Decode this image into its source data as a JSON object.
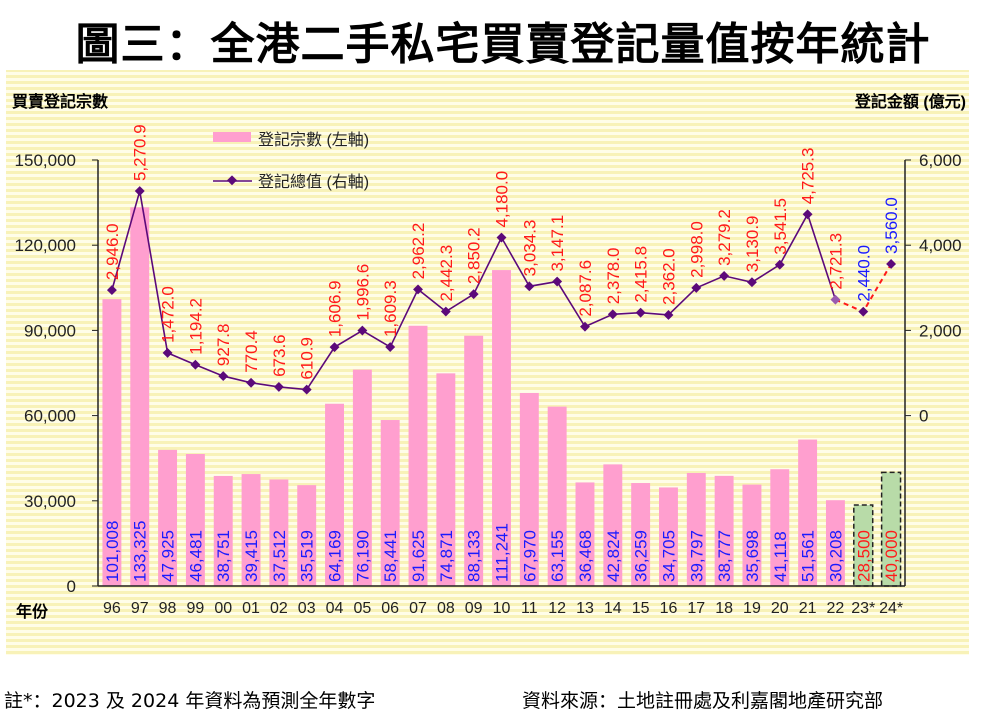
{
  "title": "圖三：全港二手私宅買賣登記量值按年統計",
  "chart_data": {
    "type": "bar+line",
    "title": "圖三：全港二手私宅買賣登記量值按年統計",
    "ylabel": "買賣登記宗數",
    "y2label": "登記金額 (億元)",
    "xlabel": "年份",
    "categories": [
      "96",
      "97",
      "98",
      "99",
      "00",
      "01",
      "02",
      "03",
      "04",
      "05",
      "06",
      "07",
      "08",
      "09",
      "10",
      "11",
      "12",
      "13",
      "14",
      "15",
      "16",
      "17",
      "18",
      "19",
      "20",
      "21",
      "22",
      "23*",
      "24*"
    ],
    "ylim": [
      0,
      150000
    ],
    "yticks": [
      "0",
      "30,000",
      "60,000",
      "90,000",
      "120,000",
      "150,000"
    ],
    "y2lim": [
      -4000,
      6000
    ],
    "y2ticks": [
      "0",
      "2,000",
      "4,000",
      "6,000"
    ],
    "grid": false,
    "legend_position": "top-left",
    "series": [
      {
        "name": "登記宗數 (左軸)",
        "type": "bar",
        "axis": "left",
        "color": "#ff9fcf",
        "values": [
          101008,
          133325,
          47925,
          46481,
          38751,
          39415,
          37512,
          35519,
          64169,
          76190,
          58441,
          91625,
          74871,
          88133,
          111241,
          67970,
          63155,
          36468,
          42824,
          36259,
          34705,
          39797,
          38777,
          35698,
          41118,
          51561,
          30208,
          28500,
          40000
        ],
        "labels": [
          "101,008",
          "133,325",
          "47,925",
          "46,481",
          "38,751",
          "39,415",
          "37,512",
          "35,519",
          "64,169",
          "76,190",
          "58,441",
          "91,625",
          "74,871",
          "88,133",
          "111,241",
          "67,970",
          "63,155",
          "36,468",
          "42,824",
          "36,259",
          "34,705",
          "39,797",
          "38,777",
          "35,698",
          "41,118",
          "51,561",
          "30,208",
          "28,500",
          "40,000"
        ]
      },
      {
        "name": "登記總值 (右軸)",
        "type": "line",
        "axis": "right",
        "color": "#5c0a7a",
        "values": [
          2946.0,
          5270.9,
          1472.0,
          1194.2,
          927.8,
          770.4,
          673.6,
          610.9,
          1606.9,
          1996.6,
          1609.3,
          2962.2,
          2442.3,
          2850.2,
          4180.0,
          3034.3,
          3147.1,
          2087.6,
          2378.0,
          2415.8,
          2362.0,
          2998.0,
          3279.2,
          3130.9,
          3541.5,
          4725.3,
          2721.3,
          2440.0,
          3560.0
        ],
        "labels": [
          "2,946.0",
          "5,270.9",
          "1,472.0",
          "1,194.2",
          "927.8",
          "770.4",
          "673.6",
          "610.9",
          "1,606.9",
          "1,996.6",
          "1,609.3",
          "2,962.2",
          "2,442.3",
          "2,850.2",
          "4,180.0",
          "3,034.3",
          "3,147.1",
          "2,087.6",
          "2,378.0",
          "2,415.8",
          "2,362.0",
          "2,998.0",
          "3,279.2",
          "3,130.9",
          "3,541.5",
          "4,725.3",
          "2,721.3",
          "2,440.0",
          "3,560.0"
        ]
      }
    ],
    "forecast_categories": [
      "23*",
      "24*"
    ]
  },
  "colors": {
    "bar": "#ff9fcf",
    "forecast_bar": "#b8dba8",
    "line": "#5c0a7a",
    "label_red": "#ff1a1a",
    "label_blue": "#1a1aff",
    "background": "#fffbd6"
  },
  "footnote": "註*：2023 及 2024 年資料為預測全年數字",
  "source": "資料來源：土地註冊處及利嘉閣地產研究部"
}
